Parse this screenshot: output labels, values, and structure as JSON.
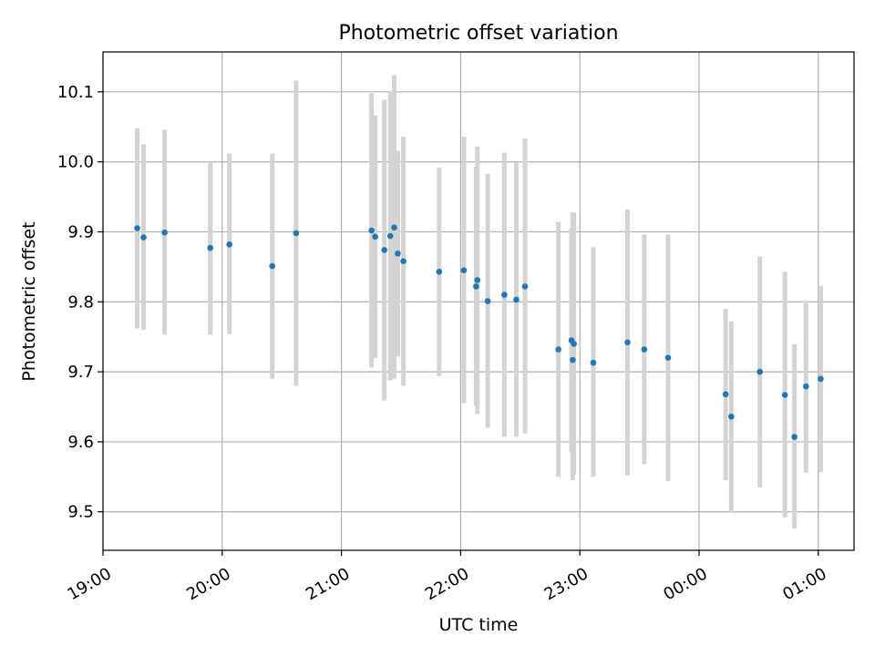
{
  "chart_data": {
    "type": "scatter",
    "title": "Photometric offset variation",
    "xlabel": "UTC time",
    "ylabel": "Photometric offset",
    "xlim_hours": [
      19.0,
      25.3
    ],
    "ylim": [
      9.445,
      10.157
    ],
    "x_ticks": [
      {
        "value": 19,
        "label": "19:00"
      },
      {
        "value": 20,
        "label": "20:00"
      },
      {
        "value": 21,
        "label": "21:00"
      },
      {
        "value": 22,
        "label": "22:00"
      },
      {
        "value": 23,
        "label": "23:00"
      },
      {
        "value": 24,
        "label": "00:00"
      },
      {
        "value": 25,
        "label": "01:00"
      }
    ],
    "y_ticks": [
      {
        "value": 9.5,
        "label": "9.5"
      },
      {
        "value": 9.6,
        "label": "9.6"
      },
      {
        "value": 9.7,
        "label": "9.7"
      },
      {
        "value": 9.8,
        "label": "9.8"
      },
      {
        "value": 9.9,
        "label": "9.9"
      },
      {
        "value": 10.0,
        "label": "10.0"
      },
      {
        "value": 10.1,
        "label": "10.1"
      }
    ],
    "grid": true,
    "point_color": "#1f77b4",
    "errorbar_color": "#d3d3d3",
    "points": [
      {
        "t": 19.287,
        "y": 9.905,
        "lo": 9.762,
        "hi": 10.048
      },
      {
        "t": 19.34,
        "y": 9.892,
        "lo": 9.76,
        "hi": 10.025
      },
      {
        "t": 19.517,
        "y": 9.899,
        "lo": 9.753,
        "hi": 10.046
      },
      {
        "t": 19.9,
        "y": 9.877,
        "lo": 9.753,
        "hi": 10.0
      },
      {
        "t": 20.06,
        "y": 9.882,
        "lo": 9.754,
        "hi": 10.012
      },
      {
        "t": 20.42,
        "y": 9.851,
        "lo": 9.69,
        "hi": 10.012
      },
      {
        "t": 20.62,
        "y": 9.898,
        "lo": 9.68,
        "hi": 10.116
      },
      {
        "t": 21.253,
        "y": 9.902,
        "lo": 9.706,
        "hi": 10.098
      },
      {
        "t": 21.283,
        "y": 9.893,
        "lo": 9.72,
        "hi": 10.066
      },
      {
        "t": 21.36,
        "y": 9.874,
        "lo": 9.659,
        "hi": 10.089
      },
      {
        "t": 21.41,
        "y": 9.894,
        "lo": 9.688,
        "hi": 10.1
      },
      {
        "t": 21.443,
        "y": 9.906,
        "lo": 9.69,
        "hi": 10.124
      },
      {
        "t": 21.473,
        "y": 9.869,
        "lo": 9.722,
        "hi": 10.016
      },
      {
        "t": 21.52,
        "y": 9.858,
        "lo": 9.68,
        "hi": 10.036
      },
      {
        "t": 21.82,
        "y": 9.843,
        "lo": 9.694,
        "hi": 9.992
      },
      {
        "t": 22.027,
        "y": 9.845,
        "lo": 9.655,
        "hi": 10.036
      },
      {
        "t": 22.13,
        "y": 9.822,
        "lo": 9.652,
        "hi": 9.993
      },
      {
        "t": 22.14,
        "y": 9.831,
        "lo": 9.64,
        "hi": 10.022
      },
      {
        "t": 22.227,
        "y": 9.801,
        "lo": 9.62,
        "hi": 9.983
      },
      {
        "t": 22.367,
        "y": 9.81,
        "lo": 9.607,
        "hi": 10.013
      },
      {
        "t": 22.467,
        "y": 9.803,
        "lo": 9.607,
        "hi": 9.999
      },
      {
        "t": 22.54,
        "y": 9.822,
        "lo": 9.612,
        "hi": 10.033
      },
      {
        "t": 22.82,
        "y": 9.732,
        "lo": 9.55,
        "hi": 9.914
      },
      {
        "t": 22.93,
        "y": 9.745,
        "lo": 9.585,
        "hi": 9.906
      },
      {
        "t": 22.94,
        "y": 9.717,
        "lo": 9.545,
        "hi": 9.928
      },
      {
        "t": 22.95,
        "y": 9.74,
        "lo": 9.553,
        "hi": 9.927
      },
      {
        "t": 23.113,
        "y": 9.713,
        "lo": 9.55,
        "hi": 9.878
      },
      {
        "t": 23.4,
        "y": 9.742,
        "lo": 9.552,
        "hi": 9.932
      },
      {
        "t": 23.54,
        "y": 9.732,
        "lo": 9.568,
        "hi": 9.896
      },
      {
        "t": 23.74,
        "y": 9.72,
        "lo": 9.544,
        "hi": 9.896
      },
      {
        "t": 24.223,
        "y": 9.668,
        "lo": 9.545,
        "hi": 9.79
      },
      {
        "t": 24.27,
        "y": 9.636,
        "lo": 9.5,
        "hi": 9.772
      },
      {
        "t": 24.51,
        "y": 9.7,
        "lo": 9.535,
        "hi": 9.865
      },
      {
        "t": 24.72,
        "y": 9.667,
        "lo": 9.492,
        "hi": 9.843
      },
      {
        "t": 24.8,
        "y": 9.607,
        "lo": 9.476,
        "hi": 9.739
      },
      {
        "t": 24.897,
        "y": 9.679,
        "lo": 9.556,
        "hi": 9.802
      },
      {
        "t": 25.02,
        "y": 9.69,
        "lo": 9.557,
        "hi": 9.823
      }
    ]
  }
}
